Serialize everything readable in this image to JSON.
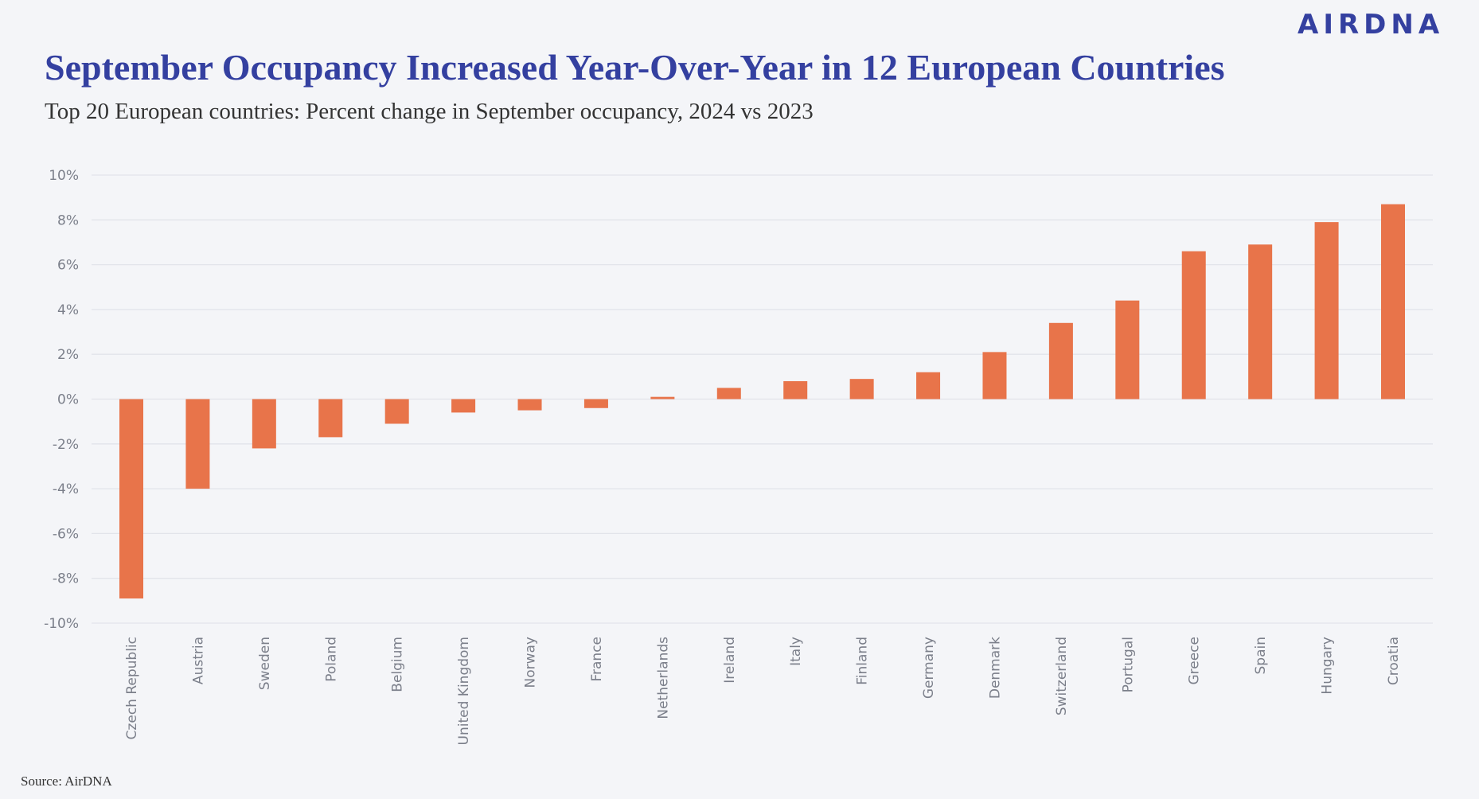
{
  "brand": {
    "logo_text": "AIRDNA",
    "color": "#3440a0"
  },
  "title": "September Occupancy Increased Year-Over-Year in 12 European Countries",
  "subtitle": "Top 20 European countries: Percent change in September occupancy, 2024 vs 2023",
  "source": "Source: AirDNA",
  "chart_data": {
    "type": "bar",
    "title": "September Occupancy Increased Year-Over-Year in 12 European Countries",
    "subtitle": "Top 20 European countries: Percent change in September occupancy, 2024 vs 2023",
    "xlabel": "",
    "ylabel": "",
    "ylim": [
      -10,
      10
    ],
    "yticks": [
      "10%",
      "8%",
      "6%",
      "4%",
      "2%",
      "0%",
      "-2%",
      "-4%",
      "-6%",
      "-8%",
      "-10%"
    ],
    "ytick_values": [
      10,
      8,
      6,
      4,
      2,
      0,
      -2,
      -4,
      -6,
      -8,
      -10
    ],
    "grid": true,
    "bar_color": "#e8744a",
    "categories": [
      "Czech Republic",
      "Austria",
      "Sweden",
      "Poland",
      "Belgium",
      "United Kingdom",
      "Norway",
      "France",
      "Netherlands",
      "Ireland",
      "Italy",
      "Finland",
      "Germany",
      "Denmark",
      "Switzerland",
      "Portugal",
      "Greece",
      "Spain",
      "Hungary",
      "Croatia"
    ],
    "values": [
      -8.9,
      -4.0,
      -2.2,
      -1.7,
      -1.1,
      -0.6,
      -0.5,
      -0.4,
      0.1,
      0.5,
      0.8,
      0.9,
      1.2,
      2.1,
      3.4,
      4.4,
      6.6,
      6.9,
      7.9,
      8.7
    ]
  }
}
